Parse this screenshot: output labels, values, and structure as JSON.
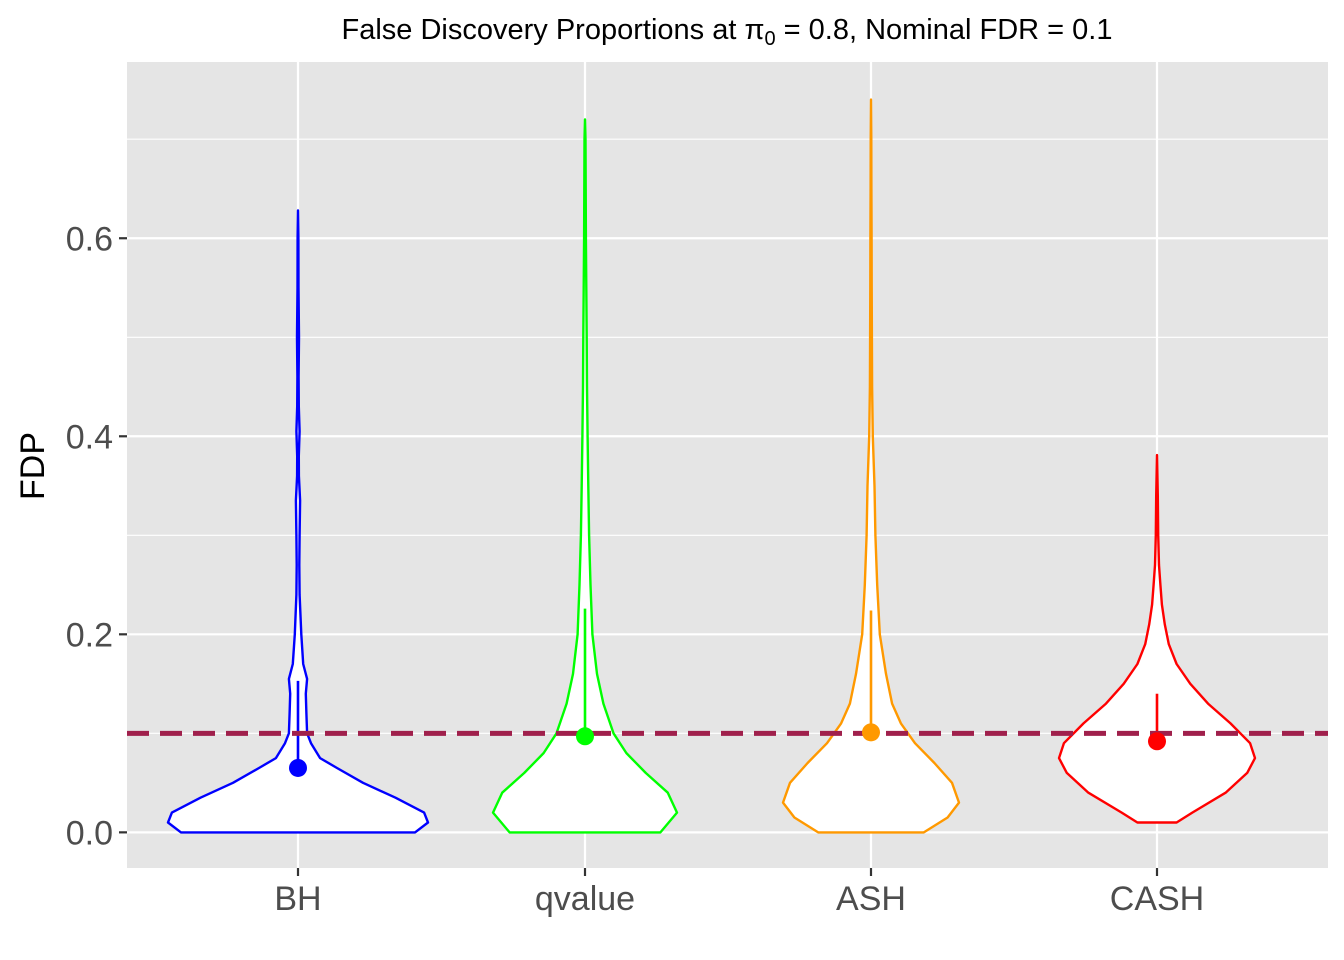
{
  "chart_data": {
    "type": "violin",
    "title": {
      "prefix": "False Discovery Proportions at ",
      "symbol": "π",
      "subscript": "0",
      "suffix": " = 0.8, Nominal FDR = 0.1"
    },
    "ylabel": "FDP",
    "xlabel": "",
    "ylim": [
      -0.036,
      0.778
    ],
    "yticks": [
      0.0,
      0.2,
      0.4,
      0.6
    ],
    "ytick_labels": [
      "0.0",
      "0.2",
      "0.4",
      "0.6"
    ],
    "grid": true,
    "legend": "none",
    "reference_line": {
      "value": 0.1,
      "style": "dashed",
      "color": "#a0204c"
    },
    "colors": {
      "panel": "#e5e5e5",
      "grid": "#ffffff"
    },
    "categories": [
      "BH",
      "qvalue",
      "ASH",
      "CASH"
    ],
    "series": [
      {
        "category": "BH",
        "color": "#0000ff",
        "mean": 0.065,
        "whisker": [
          0.065,
          0.153
        ],
        "max": 0.628,
        "min": 0.0,
        "density": [
          [
            0.0,
            0.9
          ],
          [
            0.01,
            1.0
          ],
          [
            0.02,
            0.97
          ],
          [
            0.035,
            0.75
          ],
          [
            0.05,
            0.5
          ],
          [
            0.065,
            0.3
          ],
          [
            0.075,
            0.17
          ],
          [
            0.09,
            0.1
          ],
          [
            0.1,
            0.07
          ],
          [
            0.12,
            0.065
          ],
          [
            0.14,
            0.06
          ],
          [
            0.155,
            0.07
          ],
          [
            0.17,
            0.04
          ],
          [
            0.2,
            0.025
          ],
          [
            0.24,
            0.012
          ],
          [
            0.27,
            0.01
          ],
          [
            0.3,
            0.012
          ],
          [
            0.335,
            0.016
          ],
          [
            0.36,
            0.007
          ],
          [
            0.38,
            0.006
          ],
          [
            0.405,
            0.012
          ],
          [
            0.43,
            0.006
          ],
          [
            0.46,
            0.005
          ],
          [
            0.5,
            0.008
          ],
          [
            0.55,
            0.004
          ],
          [
            0.6,
            0.003
          ],
          [
            0.628,
            0.0
          ]
        ]
      },
      {
        "category": "qvalue",
        "color": "#00ff00",
        "mean": 0.097,
        "whisker": [
          0.097,
          0.226
        ],
        "max": 0.72,
        "min": 0.0,
        "density": [
          [
            0.0,
            0.82
          ],
          [
            0.02,
            1.0
          ],
          [
            0.04,
            0.9
          ],
          [
            0.06,
            0.66
          ],
          [
            0.08,
            0.45
          ],
          [
            0.1,
            0.31
          ],
          [
            0.13,
            0.2
          ],
          [
            0.16,
            0.13
          ],
          [
            0.2,
            0.08
          ],
          [
            0.25,
            0.06
          ],
          [
            0.3,
            0.045
          ],
          [
            0.35,
            0.036
          ],
          [
            0.4,
            0.028
          ],
          [
            0.45,
            0.022
          ],
          [
            0.5,
            0.018
          ],
          [
            0.55,
            0.014
          ],
          [
            0.6,
            0.01
          ],
          [
            0.65,
            0.008
          ],
          [
            0.7,
            0.005
          ],
          [
            0.72,
            0.0
          ]
        ]
      },
      {
        "category": "ASH",
        "color": "#ff9900",
        "mean": 0.101,
        "whisker": [
          0.101,
          0.224
        ],
        "max": 0.74,
        "min": 0.0,
        "density": [
          [
            0.0,
            0.6
          ],
          [
            0.015,
            0.87
          ],
          [
            0.03,
            1.0
          ],
          [
            0.05,
            0.92
          ],
          [
            0.07,
            0.72
          ],
          [
            0.09,
            0.5
          ],
          [
            0.11,
            0.34
          ],
          [
            0.13,
            0.24
          ],
          [
            0.16,
            0.17
          ],
          [
            0.2,
            0.1
          ],
          [
            0.25,
            0.07
          ],
          [
            0.3,
            0.05
          ],
          [
            0.35,
            0.04
          ],
          [
            0.4,
            0.02
          ],
          [
            0.45,
            0.012
          ],
          [
            0.5,
            0.01
          ],
          [
            0.55,
            0.008
          ],
          [
            0.6,
            0.007
          ],
          [
            0.65,
            0.004
          ],
          [
            0.7,
            0.003
          ],
          [
            0.74,
            0.0
          ]
        ]
      },
      {
        "category": "CASH",
        "color": "#ff0000",
        "mean": 0.092,
        "whisker": [
          0.092,
          0.14
        ],
        "max": 0.381,
        "min": 0.01,
        "density": [
          [
            0.01,
            0.2
          ],
          [
            0.02,
            0.36
          ],
          [
            0.04,
            0.7
          ],
          [
            0.06,
            0.92
          ],
          [
            0.075,
            1.0
          ],
          [
            0.09,
            0.95
          ],
          [
            0.11,
            0.75
          ],
          [
            0.13,
            0.52
          ],
          [
            0.15,
            0.34
          ],
          [
            0.17,
            0.2
          ],
          [
            0.19,
            0.12
          ],
          [
            0.21,
            0.08
          ],
          [
            0.23,
            0.05
          ],
          [
            0.25,
            0.035
          ],
          [
            0.27,
            0.02
          ],
          [
            0.3,
            0.012
          ],
          [
            0.34,
            0.008
          ],
          [
            0.381,
            0.0
          ]
        ]
      }
    ]
  }
}
